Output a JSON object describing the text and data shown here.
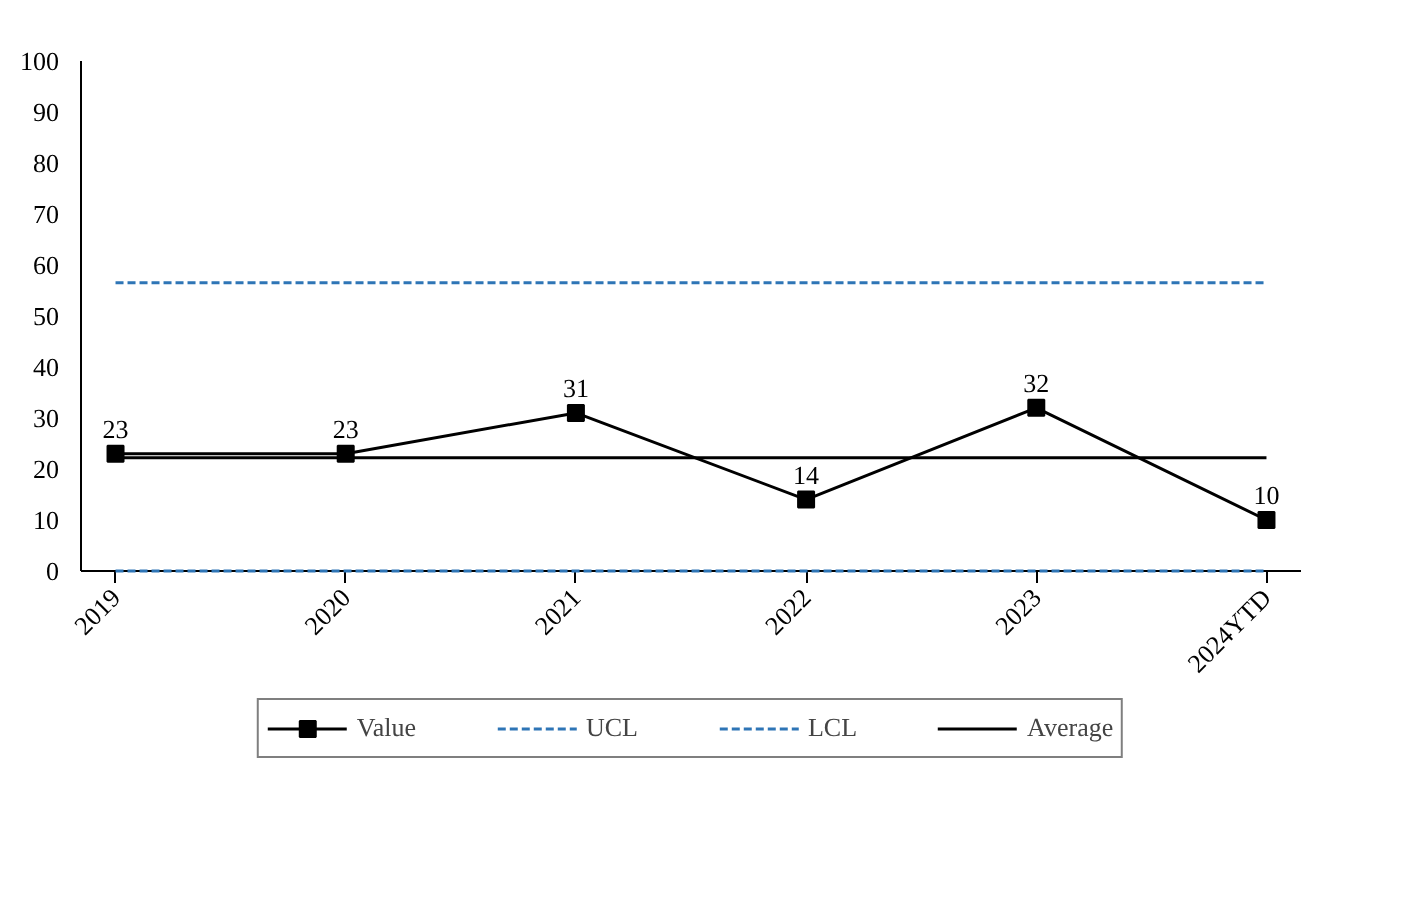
{
  "chart_data": {
    "type": "line",
    "categories": [
      "2019",
      "2020",
      "2021",
      "2022",
      "2023",
      "2024YTD"
    ],
    "series": [
      {
        "name": "Value",
        "color": "#000000",
        "values": [
          23,
          23,
          31,
          14,
          32,
          10
        ],
        "marker": "square",
        "line_style": "solid",
        "value_labels": [
          "23",
          "23",
          "31",
          "14",
          "32",
          "10"
        ]
      },
      {
        "name": "UCL",
        "color": "#2e75b6",
        "values": [
          56.5,
          56.5,
          56.5,
          56.5,
          56.5,
          56.5
        ],
        "marker": "none",
        "line_style": "dashed"
      },
      {
        "name": "LCL",
        "color": "#2e75b6",
        "values": [
          0,
          0,
          0,
          0,
          0,
          0
        ],
        "marker": "none",
        "line_style": "dashed"
      },
      {
        "name": "Average",
        "color": "#000000",
        "values": [
          22.2,
          22.2,
          22.2,
          22.2,
          22.2,
          22.2
        ],
        "marker": "none",
        "line_style": "solid"
      }
    ],
    "ylim": [
      0,
      100
    ],
    "yticks": [
      0,
      10,
      20,
      30,
      40,
      50,
      60,
      70,
      80,
      90,
      100
    ],
    "grid": false,
    "legend": "bottom"
  }
}
